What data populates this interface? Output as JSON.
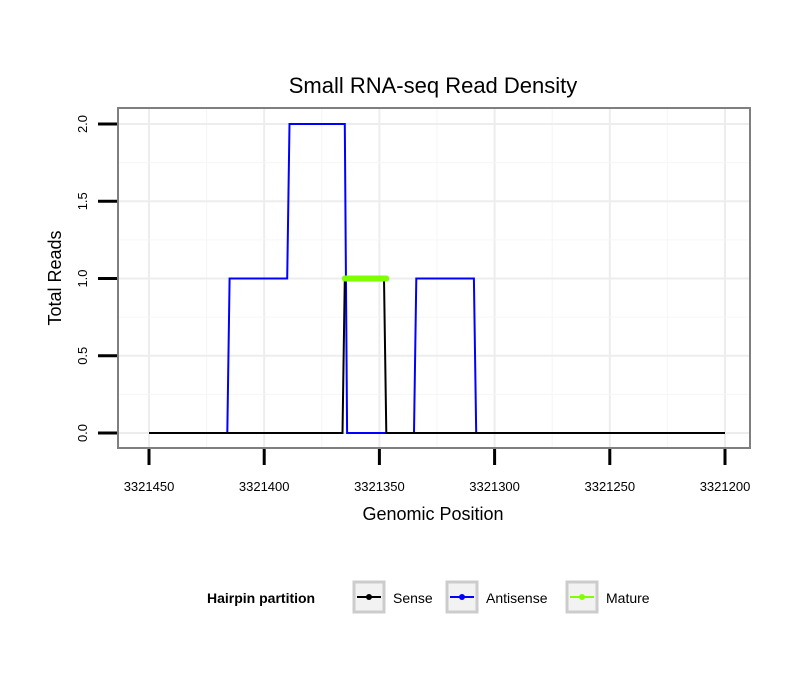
{
  "chart_data": {
    "type": "line",
    "title": "Small RNA-seq Read Density",
    "xlabel": "Genomic Position",
    "ylabel": "Total Reads",
    "x_reversed": true,
    "xlim": [
      3321460,
      3321190
    ],
    "ylim": [
      -0.1,
      2.1
    ],
    "x_ticks": [
      3321450,
      3321400,
      3321350,
      3321300,
      3321250,
      3321200
    ],
    "x_tick_labels": [
      "3321450",
      "3321400",
      "3321350",
      "3321300",
      "3321250",
      "3321200"
    ],
    "y_ticks": [
      0.0,
      0.5,
      1.0,
      1.5,
      2.0
    ],
    "y_tick_labels": [
      "0.0",
      "0.5",
      "1.0",
      "1.5",
      "2.0"
    ],
    "grid": true,
    "legend": {
      "title": "Hairpin partition",
      "placement": "bottom",
      "entries": [
        "Sense",
        "Antisense",
        "Mature"
      ]
    },
    "series": [
      {
        "name": "Antisense",
        "color": "#0000ff",
        "points": [
          [
            3321450,
            0
          ],
          [
            3321416,
            0
          ],
          [
            3321415,
            1
          ],
          [
            3321390,
            1
          ],
          [
            3321389,
            2
          ],
          [
            3321365,
            2
          ],
          [
            3321364,
            0
          ],
          [
            3321335,
            0
          ],
          [
            3321334,
            1
          ],
          [
            3321309,
            1
          ],
          [
            3321308,
            0
          ],
          [
            3321200,
            0
          ]
        ]
      },
      {
        "name": "Sense",
        "color": "#000000",
        "points": [
          [
            3321450,
            0
          ],
          [
            3321366,
            0
          ],
          [
            3321365,
            1
          ],
          [
            3321348,
            1
          ],
          [
            3321347,
            0
          ],
          [
            3321200,
            0
          ]
        ]
      },
      {
        "name": "Mature",
        "color": "#7fff00",
        "points": [
          [
            3321365,
            1
          ],
          [
            3321347,
            1
          ]
        ]
      }
    ]
  }
}
